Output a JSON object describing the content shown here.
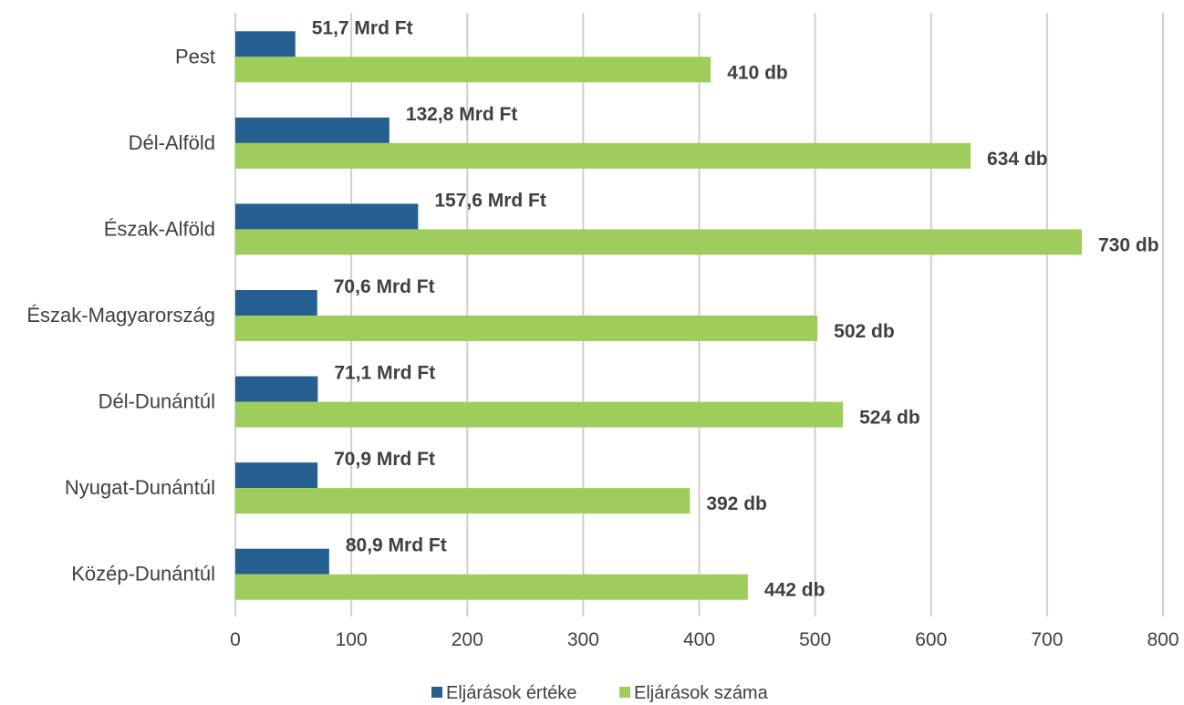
{
  "chart_data": {
    "type": "bar",
    "orientation": "horizontal",
    "categories": [
      "Pest",
      "Dél-Alföld",
      "Észak-Alföld",
      "Észak-Magyarország",
      "Dél-Dunántúl",
      "Nyugat-Dunántúl",
      "Közép-Dunántúl"
    ],
    "series": [
      {
        "name": "Eljárások értéke",
        "color": "#255E91",
        "values": [
          51.7,
          132.8,
          157.6,
          70.6,
          71.1,
          70.9,
          80.9
        ],
        "labels": [
          "51,7 Mrd Ft",
          "132,8 Mrd Ft",
          "157,6 Mrd Ft",
          "70,6 Mrd Ft",
          "71,1 Mrd Ft",
          "70,9 Mrd Ft",
          "80,9 Mrd Ft"
        ]
      },
      {
        "name": "Eljárások száma",
        "color": "#9ECD5B",
        "values": [
          410,
          634,
          730,
          502,
          524,
          392,
          442
        ],
        "labels": [
          "410 db",
          "634 db",
          "730 db",
          "502 db",
          "524 db",
          "392 db",
          "442 db"
        ]
      }
    ],
    "xlim": [
      0,
      800
    ],
    "xticks": [
      0,
      100,
      200,
      300,
      400,
      500,
      600,
      700,
      800
    ],
    "xtick_labels": [
      "0",
      "100",
      "200",
      "300",
      "400",
      "500",
      "600",
      "700",
      "800"
    ],
    "grid": true,
    "legend_position": "bottom"
  }
}
